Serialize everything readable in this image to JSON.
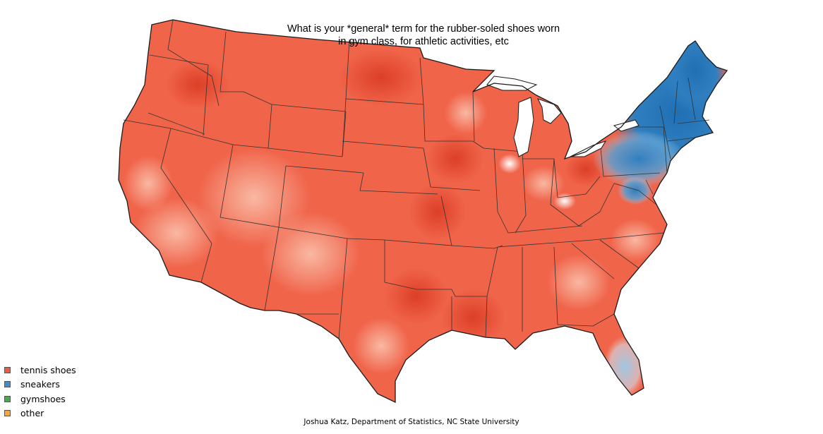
{
  "title": {
    "line1": "What is your *general* term for the rubber-soled shoes worn",
    "line2": "in gym class, for athletic activities, etc"
  },
  "legend": [
    {
      "label": "tennis shoes",
      "color": "#ef5a40"
    },
    {
      "label": "sneakers",
      "color": "#3d8fcc"
    },
    {
      "label": "gymshoes",
      "color": "#4ea64e"
    },
    {
      "label": "other",
      "color": "#f5a742"
    }
  ],
  "credit": "Joshua Katz, Department of Statistics, NC State University",
  "colors": {
    "tennis_dark": "#e04a2f",
    "tennis": "#f0644a",
    "tennis_light": "#f7a58d",
    "sneakers_dark": "#1f6fb3",
    "sneakers": "#3e8dc9",
    "sneakers_light": "#a9cfe8",
    "border": "#1a1a1a"
  }
}
